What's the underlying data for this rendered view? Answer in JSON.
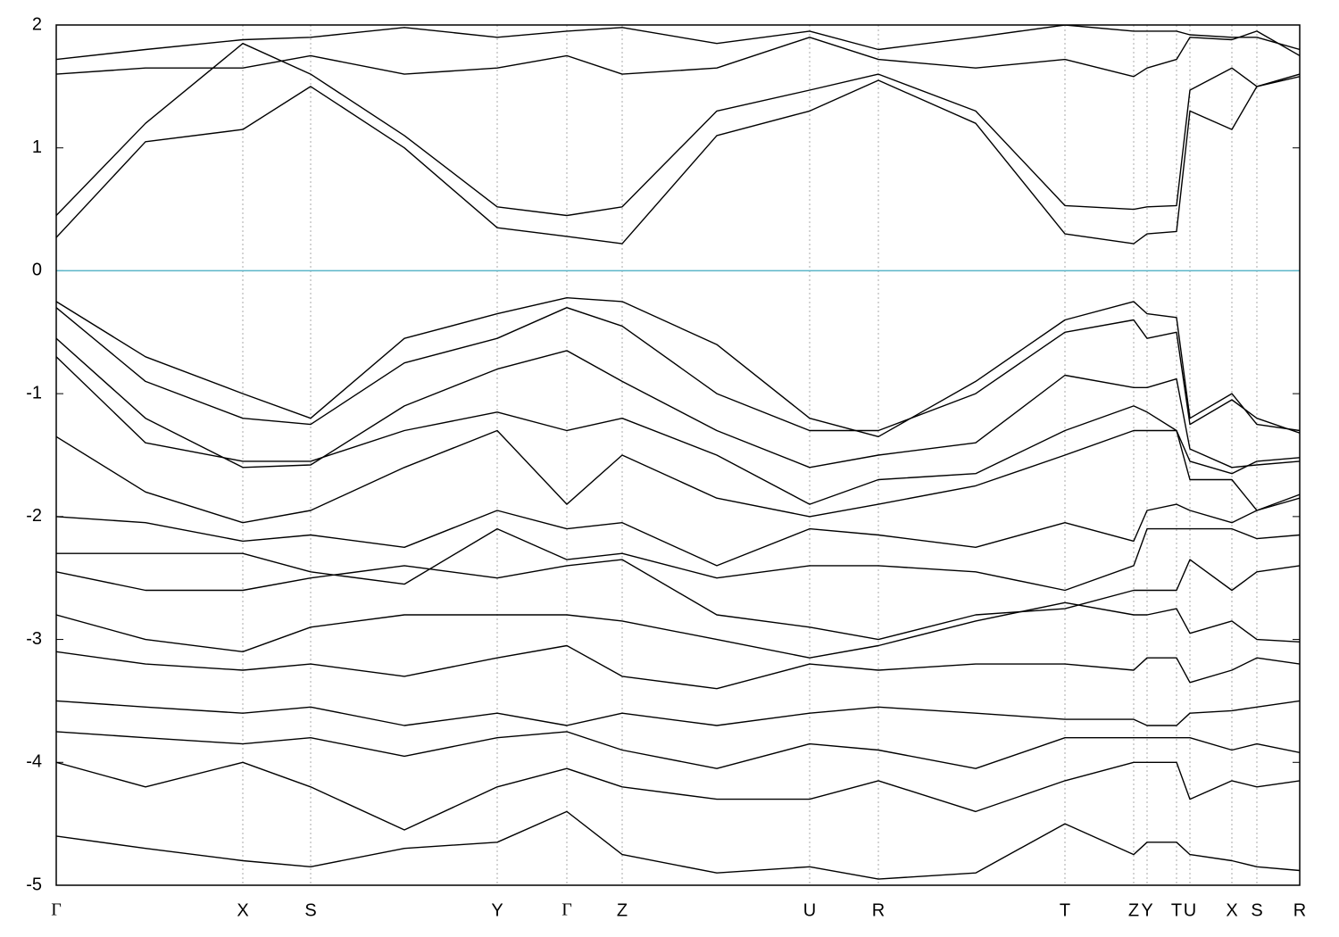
{
  "chart_data": {
    "type": "line",
    "x": [
      0,
      1.0,
      2.09,
      2.85,
      3.9,
      4.94,
      5.72,
      6.34,
      7.4,
      8.44,
      9.21,
      10.3,
      11.3,
      12.07,
      12.22,
      12.55,
      12.7,
      13.17,
      13.45,
      13.93
    ],
    "xlim": [
      0,
      13.93
    ],
    "xticks": [
      {
        "value": 0,
        "label": "Γ"
      },
      {
        "value": 2.09,
        "label": "X"
      },
      {
        "value": 2.85,
        "label": "S"
      },
      {
        "value": 4.94,
        "label": "Y"
      },
      {
        "value": 5.72,
        "label": "Γ"
      },
      {
        "value": 6.34,
        "label": "Z"
      },
      {
        "value": 8.44,
        "label": "U"
      },
      {
        "value": 9.21,
        "label": "R"
      },
      {
        "value": 11.3,
        "label": "T"
      },
      {
        "value": 12.07,
        "label": "Z"
      },
      {
        "value": 12.22,
        "label": "Y"
      },
      {
        "value": 12.55,
        "label": "T"
      },
      {
        "value": 12.7,
        "label": "U"
      },
      {
        "value": 13.17,
        "label": "X"
      },
      {
        "value": 13.45,
        "label": "S"
      },
      {
        "value": 13.93,
        "label": "R"
      }
    ],
    "ylim": [
      -5,
      2
    ],
    "yticks": [
      -5,
      -4,
      -3,
      -2,
      -1,
      0,
      1,
      2
    ],
    "grid": true,
    "color": "#000000",
    "hlines": [
      {
        "value": 0,
        "color": "#5ab4c8"
      }
    ],
    "series": [
      {
        "values": [
          0.27,
          1.05,
          1.15,
          1.5,
          1.0,
          0.35,
          0.28,
          0.22,
          1.1,
          1.3,
          1.55,
          1.2,
          0.3,
          0.22,
          0.3,
          0.32,
          1.3,
          1.15,
          1.5,
          1.58
        ]
      },
      {
        "values": [
          0.45,
          1.2,
          1.85,
          1.6,
          1.1,
          0.52,
          0.45,
          0.52,
          1.3,
          1.47,
          1.6,
          1.3,
          0.53,
          0.5,
          0.52,
          0.53,
          1.47,
          1.65,
          1.5,
          1.6
        ]
      },
      {
        "values": [
          1.6,
          1.65,
          1.65,
          1.75,
          1.6,
          1.65,
          1.75,
          1.6,
          1.65,
          1.9,
          1.72,
          1.65,
          1.72,
          1.58,
          1.65,
          1.72,
          1.9,
          1.88,
          1.95,
          1.75
        ]
      },
      {
        "values": [
          1.72,
          1.8,
          1.88,
          1.9,
          1.98,
          1.9,
          1.95,
          1.98,
          1.85,
          1.95,
          1.8,
          1.9,
          2.0,
          1.95,
          1.95,
          1.95,
          1.92,
          1.9,
          1.9,
          1.8
        ]
      },
      {
        "values": [
          -0.25,
          -0.7,
          -1.0,
          -1.2,
          -0.55,
          -0.35,
          -0.22,
          -0.25,
          -0.6,
          -1.2,
          -1.35,
          -0.9,
          -0.4,
          -0.25,
          -0.35,
          -0.38,
          -1.2,
          -1.0,
          -1.25,
          -1.3
        ]
      },
      {
        "values": [
          -0.3,
          -0.9,
          -1.2,
          -1.25,
          -0.75,
          -0.55,
          -0.3,
          -0.45,
          -1.0,
          -1.3,
          -1.3,
          -1.0,
          -0.5,
          -0.4,
          -0.55,
          -0.5,
          -1.25,
          -1.05,
          -1.2,
          -1.32
        ]
      },
      {
        "values": [
          -0.55,
          -1.2,
          -1.6,
          -1.58,
          -1.1,
          -0.8,
          -0.65,
          -0.9,
          -1.3,
          -1.6,
          -1.5,
          -1.4,
          -0.85,
          -0.95,
          -0.95,
          -0.88,
          -1.45,
          -1.6,
          -1.58,
          -1.55
        ]
      },
      {
        "values": [
          -0.7,
          -1.4,
          -1.55,
          -1.55,
          -1.3,
          -1.15,
          -1.3,
          -1.2,
          -1.5,
          -1.9,
          -1.7,
          -1.65,
          -1.3,
          -1.1,
          -1.15,
          -1.3,
          -1.55,
          -1.65,
          -1.55,
          -1.52
        ]
      },
      {
        "values": [
          -1.35,
          -1.8,
          -2.05,
          -1.95,
          -1.6,
          -1.3,
          -1.9,
          -1.5,
          -1.85,
          -2.0,
          -1.9,
          -1.75,
          -1.5,
          -1.3,
          -1.3,
          -1.3,
          -1.7,
          -1.7,
          -1.95,
          -1.85
        ]
      },
      {
        "values": [
          -2.0,
          -2.05,
          -2.2,
          -2.15,
          -2.25,
          -1.95,
          -2.1,
          -2.05,
          -2.4,
          -2.1,
          -2.15,
          -2.25,
          -2.05,
          -2.2,
          -1.95,
          -1.9,
          -1.95,
          -2.05,
          -1.95,
          -1.82
        ]
      },
      {
        "values": [
          -2.3,
          -2.3,
          -2.3,
          -2.45,
          -2.55,
          -2.1,
          -2.35,
          -2.3,
          -2.5,
          -2.4,
          -2.4,
          -2.45,
          -2.6,
          -2.4,
          -2.1,
          -2.1,
          -2.1,
          -2.1,
          -2.18,
          -2.15
        ]
      },
      {
        "values": [
          -2.45,
          -2.6,
          -2.6,
          -2.5,
          -2.4,
          -2.5,
          -2.4,
          -2.35,
          -2.8,
          -2.9,
          -3.0,
          -2.8,
          -2.75,
          -2.6,
          -2.6,
          -2.6,
          -2.35,
          -2.6,
          -2.45,
          -2.4
        ]
      },
      {
        "values": [
          -2.8,
          -3.0,
          -3.1,
          -2.9,
          -2.8,
          -2.8,
          -2.8,
          -2.85,
          -3.0,
          -3.15,
          -3.05,
          -2.85,
          -2.7,
          -2.8,
          -2.8,
          -2.75,
          -2.95,
          -2.85,
          -3.0,
          -3.02
        ]
      },
      {
        "values": [
          -3.1,
          -3.2,
          -3.25,
          -3.2,
          -3.3,
          -3.15,
          -3.05,
          -3.3,
          -3.4,
          -3.2,
          -3.25,
          -3.2,
          -3.2,
          -3.25,
          -3.15,
          -3.15,
          -3.35,
          -3.25,
          -3.15,
          -3.2
        ]
      },
      {
        "values": [
          -3.5,
          -3.55,
          -3.6,
          -3.55,
          -3.7,
          -3.6,
          -3.7,
          -3.6,
          -3.7,
          -3.6,
          -3.55,
          -3.6,
          -3.65,
          -3.65,
          -3.7,
          -3.7,
          -3.6,
          -3.58,
          -3.55,
          -3.5
        ]
      },
      {
        "values": [
          -3.75,
          -3.8,
          -3.85,
          -3.8,
          -3.95,
          -3.8,
          -3.75,
          -3.9,
          -4.05,
          -3.85,
          -3.9,
          -4.05,
          -3.8,
          -3.8,
          -3.8,
          -3.8,
          -3.8,
          -3.9,
          -3.85,
          -3.92
        ]
      },
      {
        "values": [
          -4.0,
          -4.2,
          -4.0,
          -4.2,
          -4.55,
          -4.2,
          -4.05,
          -4.2,
          -4.3,
          -4.3,
          -4.15,
          -4.4,
          -4.15,
          -4.0,
          -4.0,
          -4.0,
          -4.3,
          -4.15,
          -4.2,
          -4.15
        ]
      },
      {
        "values": [
          -4.6,
          -4.7,
          -4.8,
          -4.85,
          -4.7,
          -4.65,
          -4.4,
          -4.75,
          -4.9,
          -4.85,
          -4.95,
          -4.9,
          -4.5,
          -4.75,
          -4.65,
          -4.65,
          -4.75,
          -4.8,
          -4.85,
          -4.88
        ]
      }
    ]
  }
}
